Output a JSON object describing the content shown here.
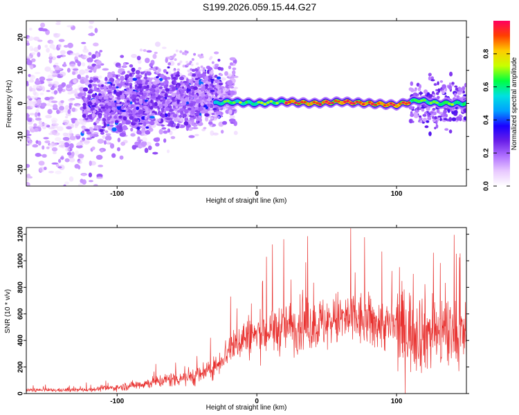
{
  "title": "S199.2026.059.15.44.G27",
  "colors": {
    "snr_line": "#e8312f",
    "colormap": [
      "#ffffff",
      "#e8c8ff",
      "#b070ff",
      "#6a1fe8",
      "#1a00ff",
      "#00a0ff",
      "#00e0e0",
      "#00ff40",
      "#c8ff00",
      "#ffcc00",
      "#ff4000",
      "#ff0060"
    ]
  },
  "chart_data": [
    {
      "type": "heatmap",
      "title": "S199.2026.059.15.44.G27",
      "xlabel": "Height of straight line (km)",
      "ylabel": "Frequency (Hz)",
      "xlim": [
        -165,
        150
      ],
      "ylim": [
        -25,
        25
      ],
      "xticks": [
        -100,
        0,
        100
      ],
      "yticks": [
        -20,
        -10,
        0,
        10,
        20
      ],
      "colorbar": {
        "label": "Normalized spectral amplitude",
        "range": [
          0,
          1
        ],
        "ticks": [
          0.0,
          0.2,
          0.4,
          0.6,
          0.8
        ]
      },
      "ridge": {
        "description_points_x": [
          -30,
          -20,
          0,
          20,
          40,
          60,
          80,
          100,
          115,
          130,
          150
        ],
        "description_points_y": [
          0,
          0.5,
          0,
          0.5,
          0,
          0.5,
          0,
          -0.5,
          1,
          0,
          0
        ],
        "peak_amplitude_x_range": [
          20,
          110
        ]
      }
    },
    {
      "type": "line",
      "title": "",
      "xlabel": "Height of straight line (km)",
      "ylabel": "SNR (10 * v/v)",
      "xlim": [
        -165,
        150
      ],
      "ylim": [
        0,
        1250
      ],
      "xticks": [
        -100,
        0,
        100
      ],
      "yticks": [
        0,
        200,
        400,
        600,
        800,
        1000,
        1200
      ],
      "series": [
        {
          "name": "SNR",
          "x": [
            -165,
            -140,
            -120,
            -100,
            -80,
            -60,
            -40,
            -30,
            -20,
            -10,
            0,
            10,
            20,
            30,
            40,
            50,
            60,
            70,
            80,
            90,
            100,
            110,
            120,
            130,
            140,
            150
          ],
          "y": [
            25,
            25,
            30,
            45,
            75,
            110,
            140,
            200,
            330,
            420,
            440,
            470,
            500,
            510,
            520,
            530,
            560,
            560,
            540,
            520,
            500,
            480,
            470,
            460,
            420,
            440
          ]
        }
      ]
    }
  ]
}
